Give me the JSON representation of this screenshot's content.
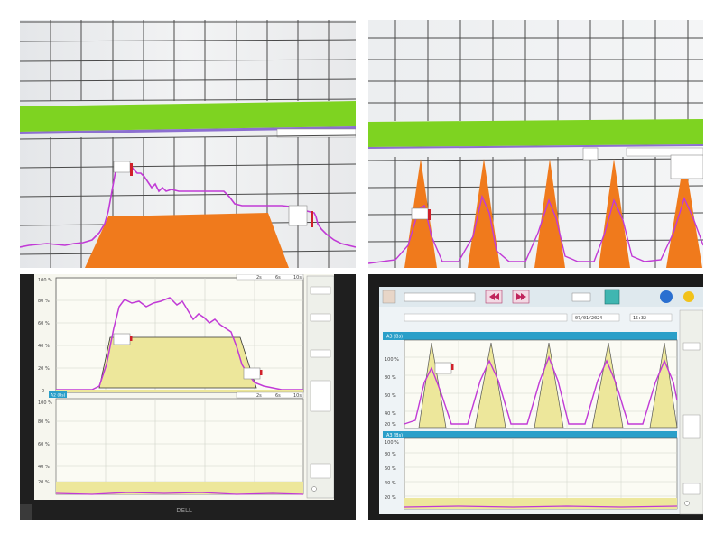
{
  "photos": [
    {
      "name": "photo-1",
      "scale_readouts": [
        "",
        "",
        "",
        ""
      ],
      "marker_labels": [
        "",
        ""
      ]
    },
    {
      "name": "photo-2",
      "scale_readouts": [
        "",
        "",
        ""
      ],
      "marker_labels": [
        "",
        ""
      ]
    },
    {
      "name": "photo-3",
      "axis_ticks": [
        "100 %",
        "80 %",
        "60 %",
        "40 %",
        "20 %",
        "0"
      ],
      "axis_ticks_lower": [
        "100 %",
        "80 %",
        "60 %",
        "40 %",
        "20 %"
      ],
      "time_labels": [
        "2s",
        "6s",
        "10s"
      ],
      "time_labels_lower": [
        "2s",
        "6s",
        "10s"
      ],
      "lower_channel_tag": "A2 (Bs)",
      "side_labels": [
        "",
        "",
        "",
        "",
        ""
      ],
      "brand": "DELL"
    },
    {
      "name": "photo-4",
      "axis_ticks": [
        "100 %",
        "80 %",
        "60 %",
        "40 %",
        "20 %"
      ],
      "axis_ticks_lower": [
        "100 %",
        "80 %",
        "60 %",
        "40 %",
        "20 %"
      ],
      "channel_tag": "A3 (Bs)",
      "lower_channel_tag": "A3 (Bs)",
      "date_value": "07/01/2024",
      "time_value": "15:32",
      "dropdown_value": "",
      "profile_value": ""
    }
  ],
  "colors": {
    "grid": "#4a4a4a",
    "green_band": "#7ed321",
    "orange": "#f07a1c",
    "magenta": "#c13ad6",
    "pale_yellow": "#ede79b",
    "teal_header": "#2a9fc9",
    "screen_bg": "#f6f6ee",
    "bezel": "#1f1f1f"
  }
}
